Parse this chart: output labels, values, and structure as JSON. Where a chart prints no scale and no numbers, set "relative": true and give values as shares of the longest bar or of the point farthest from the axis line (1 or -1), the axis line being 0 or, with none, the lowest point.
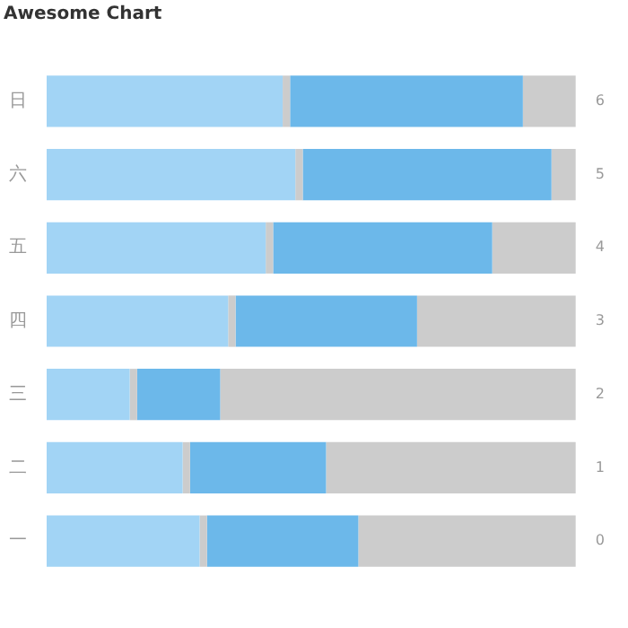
{
  "chart_data": {
    "type": "bar",
    "title": "Awesome Chart",
    "orientation": "horizontal",
    "stacked": true,
    "relative": true,
    "legend": false,
    "categories": [
      "日",
      "六",
      "五",
      "四",
      "三",
      "二",
      "一"
    ],
    "y2_categories": [
      "6",
      "5",
      "4",
      "3",
      "2",
      "1",
      "0"
    ],
    "series": [
      {
        "color": "#a2d4f5",
        "values": [
          0.446,
          0.47,
          0.414,
          0.343,
          0.157,
          0.257,
          0.289
        ]
      },
      {
        "color": "#cccccc",
        "values": [
          0.014,
          0.014,
          0.014,
          0.014,
          0.014,
          0.014,
          0.014
        ]
      },
      {
        "color": "#6cb8ea",
        "values": [
          0.44,
          0.47,
          0.414,
          0.343,
          0.157,
          0.257,
          0.286
        ]
      },
      {
        "color": "#cccccc",
        "values": [
          0.1,
          0.046,
          0.158,
          0.3,
          0.672,
          0.472,
          0.411
        ]
      }
    ]
  }
}
